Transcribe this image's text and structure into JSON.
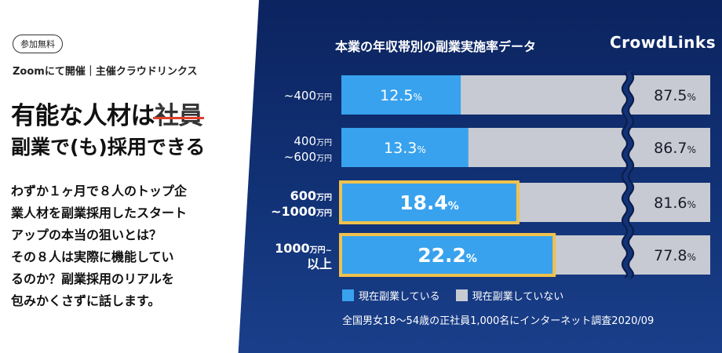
{
  "left": {
    "badge": "参加無料",
    "host": "Zoomにて開催｜主催クラウドリンクス",
    "headline1_prefix": "有能な人材は",
    "headline1_struck": "社員",
    "headline2": "副業で(も)採用できる",
    "body_lines": [
      "わずか１ヶ月で８人のトップ企",
      "業人材を副業採用したスタート",
      "アップの本当の狙いとは？",
      "その８人は実際に機能してい",
      "るのか？副業採用のリアルを",
      "包みかくさずに話します。"
    ]
  },
  "header": {
    "chart_title": "本業の年収帯別の副業実施率データ",
    "brand": "CrowdLinks"
  },
  "legend": {
    "doing": "現在副業している",
    "not_doing": "現在副業していない"
  },
  "footnote": "全国男女18〜54歳の正社員1,000名にインターネット調査2020/09",
  "colors": {
    "doing": "#38a2ee",
    "not_doing": "#c7cad2",
    "highlight_border": "#f0c24c",
    "background": "#123378"
  },
  "chart_data": {
    "type": "bar",
    "orientation": "horizontal",
    "stacked": true,
    "axis_break": true,
    "title": "本業の年収帯別の副業実施率データ",
    "unit": "%",
    "categories": [
      {
        "line1": "~400",
        "line1_unit": "万円",
        "line2": "",
        "line2_unit": ""
      },
      {
        "line1": "400",
        "line1_unit": "万円",
        "line2": "~600",
        "line2_unit": "万円"
      },
      {
        "line1": "600",
        "line1_unit": "万円",
        "line2": "~1000",
        "line2_unit": "万円"
      },
      {
        "line1": "1000",
        "line1_unit": "万円~",
        "line2": "以上",
        "line2_unit": ""
      }
    ],
    "highlight": [
      false,
      false,
      true,
      true
    ],
    "series": [
      {
        "name": "現在副業している",
        "values": [
          12.5,
          13.3,
          18.4,
          22.2
        ]
      },
      {
        "name": "現在副業していない",
        "values": [
          87.5,
          86.7,
          81.6,
          77.8
        ]
      }
    ]
  }
}
